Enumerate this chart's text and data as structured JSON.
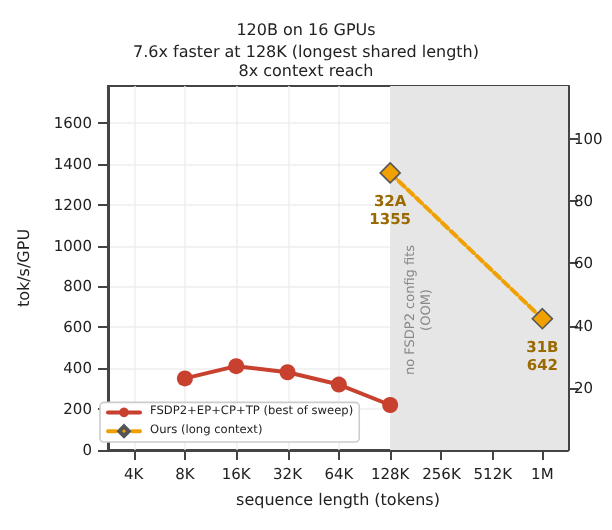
{
  "chart_data": {
    "type": "line",
    "title": "120B on 16 GPUs",
    "subtitle": "7.6x faster at 128K (longest shared length)\n8x context reach",
    "xlabel": "sequence length (tokens)",
    "ylabel": "tok/s/GPU",
    "series": [
      {
        "name": "FSDP2+EP+CP+TP (best of sweep)",
        "color": "#c8412f",
        "marker": "circle",
        "line_style": "solid",
        "x": [
          8000,
          16000,
          32000,
          64000,
          128000
        ],
        "values": [
          350,
          410,
          380,
          320,
          220
        ]
      },
      {
        "name": "Ours (long context)",
        "color": "#f0a000",
        "marker": "diamond",
        "line_style": "dashed",
        "x": [
          128000,
          1000000
        ],
        "values": [
          1355,
          642
        ],
        "value_labels": [
          "32A\n1355",
          "31B\n642"
        ]
      }
    ],
    "log": "x",
    "xlim": [
      2830,
      1414000
    ],
    "xticks": [
      {
        "value": 4000,
        "label": "4K"
      },
      {
        "value": 8000,
        "label": "8K"
      },
      {
        "value": 16000,
        "label": "16K"
      },
      {
        "value": 32000,
        "label": "32K"
      },
      {
        "value": 64000,
        "label": "64K"
      },
      {
        "value": 128000,
        "label": "128K"
      },
      {
        "value": 256000,
        "label": "256K"
      },
      {
        "value": 512000,
        "label": "512K"
      },
      {
        "value": 1000000,
        "label": "1M"
      }
    ],
    "ylim": [
      0,
      1780
    ],
    "yticks": [
      0,
      200,
      400,
      600,
      800,
      1000,
      1200,
      1400,
      1600
    ],
    "y2lim": [
      0,
      117
    ],
    "y2ticks": [
      20,
      40,
      60,
      80,
      100
    ],
    "bands": [
      {
        "axis": "x",
        "from": 128000,
        "to": 1414000,
        "label": "no FSDP2 config fits\n(OOM)",
        "color": "#e6e6e6"
      }
    ],
    "grid": true,
    "legend": "bottom left"
  }
}
